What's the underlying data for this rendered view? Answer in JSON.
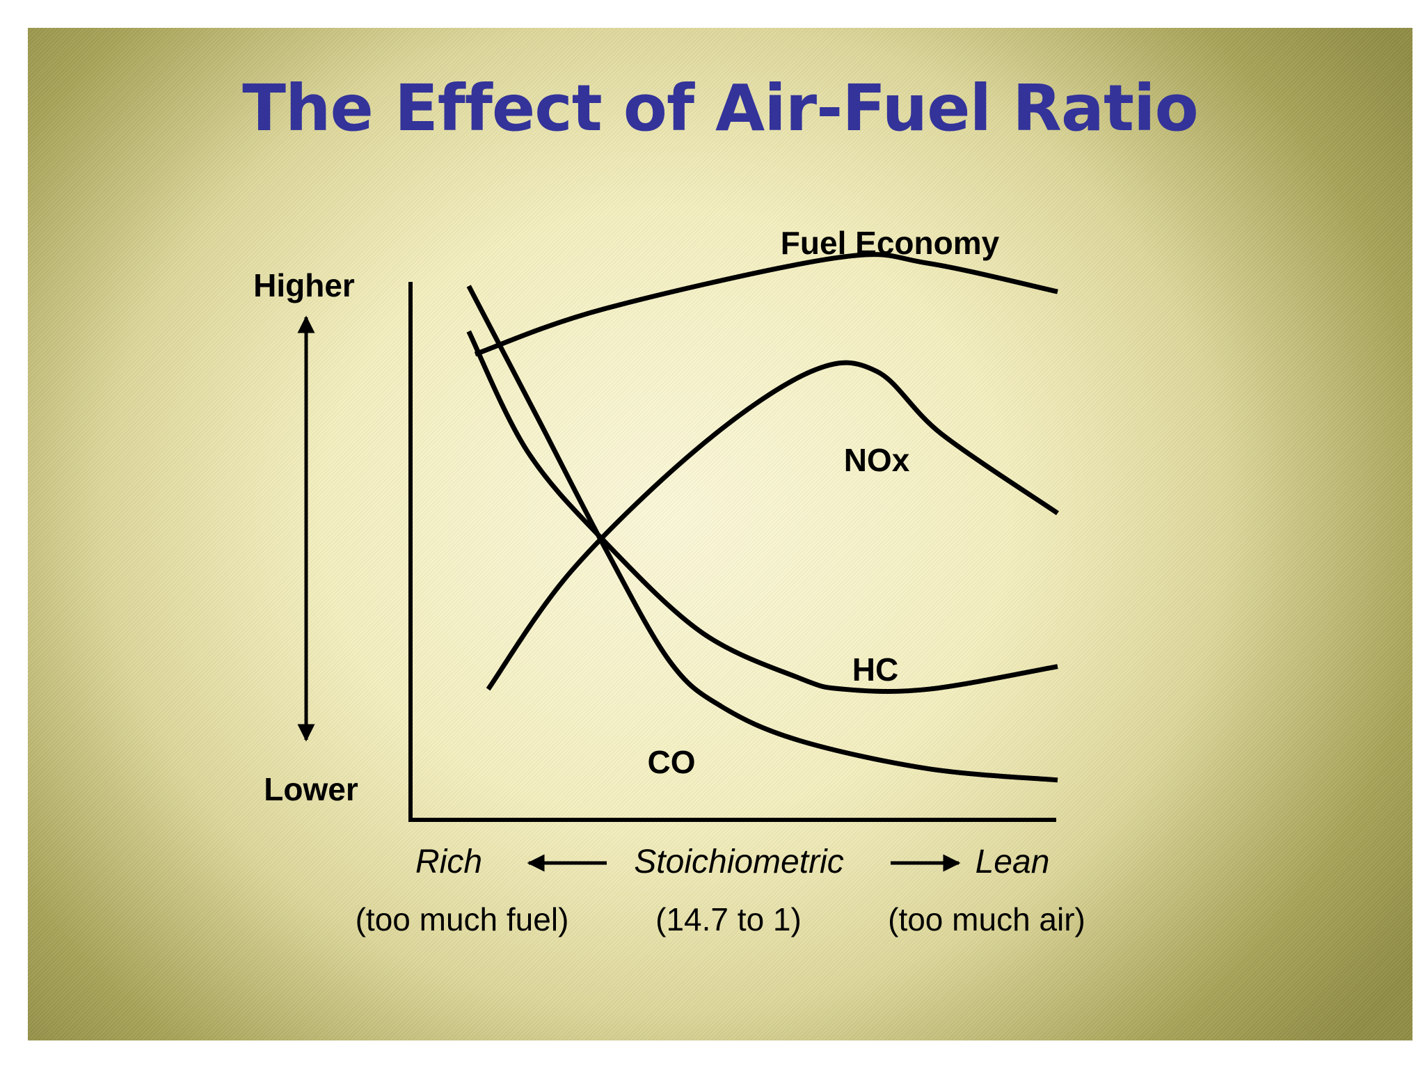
{
  "title": "The Effect of Air-Fuel Ratio",
  "chart_data": {
    "type": "line",
    "xlabel": {
      "left": "Rich",
      "center": "Stoichiometric",
      "right": "Lean",
      "left_note": "(too much fuel)",
      "center_note": "(14.7 to 1)",
      "right_note": "(too much air)"
    },
    "ylabel": {
      "top": "Higher",
      "bottom": "Lower"
    },
    "grid": false,
    "legend": "none",
    "xlim": [
      0,
      10
    ],
    "ylim": [
      0,
      10
    ],
    "series": [
      {
        "name": "Fuel Economy",
        "x": [
          1,
          3,
          6.6,
          8,
          10
        ],
        "y": [
          8.2,
          9.0,
          9.9,
          9.8,
          9.3
        ]
      },
      {
        "name": "NOx",
        "x": [
          1.2,
          2.5,
          4.5,
          6.2,
          7.2,
          8.2,
          10
        ],
        "y": [
          2.3,
          4.4,
          6.6,
          7.9,
          7.9,
          6.8,
          5.4
        ]
      },
      {
        "name": "HC",
        "x": [
          0.9,
          1.8,
          3,
          4.5,
          6,
          6.7,
          8,
          10
        ],
        "y": [
          8.6,
          6.5,
          4.9,
          3.3,
          2.5,
          2.3,
          2.3,
          2.7
        ]
      },
      {
        "name": "CO",
        "x": [
          0.9,
          2,
          3,
          4,
          4.8,
          6,
          8,
          10
        ],
        "y": [
          9.4,
          7.0,
          4.8,
          2.8,
          2.0,
          1.4,
          0.9,
          0.7
        ]
      }
    ]
  }
}
